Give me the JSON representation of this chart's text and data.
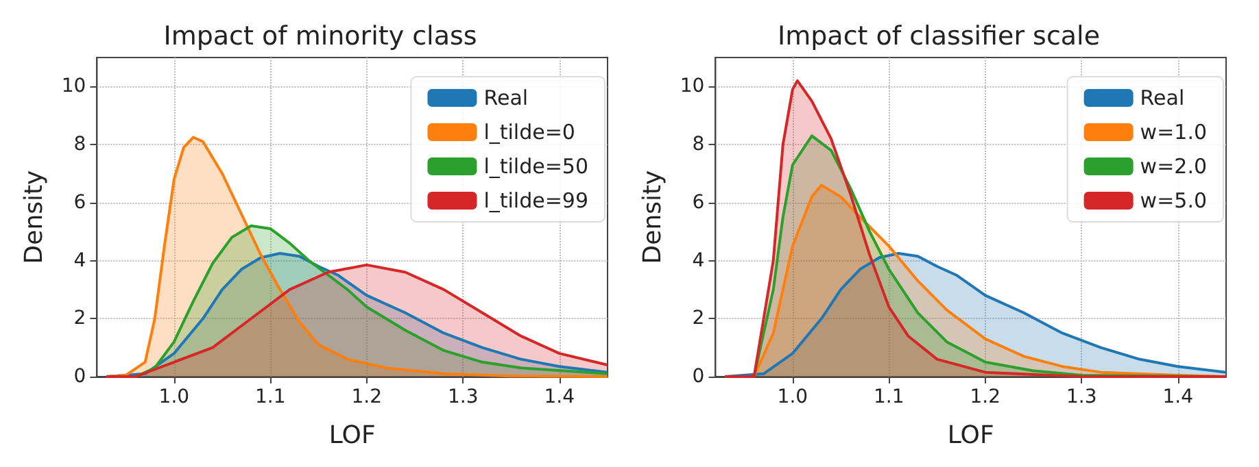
{
  "chart_data": [
    {
      "type": "area",
      "title": "Impact of minority class",
      "xlabel": "LOF",
      "ylabel": "Density",
      "xlim": [
        0.92,
        1.45
      ],
      "ylim": [
        0,
        11
      ],
      "xticks": [
        {
          "value": 1,
          "label": "1.0"
        },
        {
          "value": 1.1,
          "label": "1.1"
        },
        {
          "value": 1.2,
          "label": "1.2"
        },
        {
          "value": 1.3,
          "label": "1.3"
        },
        {
          "value": 1.4,
          "label": "1.4"
        }
      ],
      "yticks": [
        0,
        2,
        4,
        6,
        8,
        10
      ],
      "grid": true,
      "legend": "top right",
      "marker": "none",
      "series": [
        {
          "name": "Real",
          "color": "#1f77b4",
          "x": [
            0.93,
            0.97,
            1.0,
            1.03,
            1.05,
            1.07,
            1.09,
            1.11,
            1.13,
            1.15,
            1.17,
            1.2,
            1.24,
            1.28,
            1.32,
            1.36,
            1.4,
            1.45
          ],
          "values": [
            0,
            0.1,
            0.8,
            2.0,
            3.0,
            3.7,
            4.1,
            4.25,
            4.15,
            3.8,
            3.5,
            2.8,
            2.2,
            1.5,
            1.0,
            0.6,
            0.35,
            0.15
          ]
        },
        {
          "name": "l_tilde=0",
          "color": "#ff7f0e",
          "x": [
            0.93,
            0.95,
            0.97,
            0.98,
            0.99,
            1.0,
            1.01,
            1.02,
            1.03,
            1.05,
            1.07,
            1.09,
            1.11,
            1.13,
            1.15,
            1.18,
            1.22,
            1.28,
            1.35,
            1.45
          ],
          "values": [
            0,
            0.05,
            0.5,
            2,
            4.5,
            6.8,
            7.9,
            8.25,
            8.1,
            7.0,
            5.6,
            4.2,
            3.0,
            1.9,
            1.1,
            0.6,
            0.3,
            0.1,
            0.02,
            0
          ]
        },
        {
          "name": "l_tilde=50",
          "color": "#2ca02c",
          "x": [
            0.93,
            0.96,
            0.98,
            1.0,
            1.02,
            1.04,
            1.06,
            1.08,
            1.1,
            1.12,
            1.14,
            1.16,
            1.18,
            1.2,
            1.24,
            1.28,
            1.32,
            1.36,
            1.45
          ],
          "values": [
            0,
            0,
            0.3,
            1.2,
            2.6,
            3.9,
            4.8,
            5.2,
            5.1,
            4.6,
            4.0,
            3.5,
            3.0,
            2.4,
            1.6,
            0.9,
            0.5,
            0.3,
            0.1
          ]
        },
        {
          "name": "l_tilde=99",
          "color": "#d62728",
          "x": [
            0.93,
            0.96,
            1.0,
            1.04,
            1.08,
            1.12,
            1.16,
            1.2,
            1.24,
            1.28,
            1.32,
            1.36,
            1.4,
            1.45
          ],
          "values": [
            0,
            0,
            0.5,
            1.0,
            2.0,
            3.0,
            3.6,
            3.85,
            3.6,
            3.0,
            2.2,
            1.4,
            0.8,
            0.4
          ]
        }
      ]
    },
    {
      "type": "area",
      "title": "Impact of classifier scale",
      "xlabel": "LOF",
      "ylabel": "Density",
      "xlim": [
        0.92,
        1.45
      ],
      "ylim": [
        0,
        11
      ],
      "xticks": [
        {
          "value": 1,
          "label": "1.0"
        },
        {
          "value": 1.1,
          "label": "1.1"
        },
        {
          "value": 1.2,
          "label": "1.2"
        },
        {
          "value": 1.3,
          "label": "1.3"
        },
        {
          "value": 1.4,
          "label": "1.4"
        }
      ],
      "yticks": [
        0,
        2,
        4,
        6,
        8,
        10
      ],
      "grid": true,
      "legend": "top right",
      "marker": "none",
      "series": [
        {
          "name": "Real",
          "color": "#1f77b4",
          "x": [
            0.93,
            0.97,
            1.0,
            1.03,
            1.05,
            1.07,
            1.09,
            1.11,
            1.13,
            1.15,
            1.17,
            1.2,
            1.24,
            1.28,
            1.32,
            1.36,
            1.4,
            1.45
          ],
          "values": [
            0,
            0.1,
            0.8,
            2.0,
            3.0,
            3.7,
            4.1,
            4.25,
            4.15,
            3.8,
            3.5,
            2.8,
            2.2,
            1.5,
            1.0,
            0.6,
            0.35,
            0.15
          ]
        },
        {
          "name": "w=1.0",
          "color": "#ff7f0e",
          "x": [
            0.93,
            0.96,
            0.98,
            1.0,
            1.02,
            1.03,
            1.05,
            1.07,
            1.1,
            1.13,
            1.16,
            1.2,
            1.24,
            1.28,
            1.32,
            1.4,
            1.45
          ],
          "values": [
            0,
            0,
            1.5,
            4.5,
            6.2,
            6.6,
            6.2,
            5.5,
            4.5,
            3.3,
            2.3,
            1.3,
            0.7,
            0.35,
            0.15,
            0.05,
            0
          ]
        },
        {
          "name": "w=2.0",
          "color": "#2ca02c",
          "x": [
            0.93,
            0.96,
            0.98,
            0.99,
            1.0,
            1.02,
            1.04,
            1.06,
            1.08,
            1.1,
            1.13,
            1.16,
            1.2,
            1.25,
            1.3,
            1.45
          ],
          "values": [
            0,
            0,
            3,
            5.5,
            7.3,
            8.3,
            7.8,
            6.5,
            5.0,
            3.7,
            2.2,
            1.2,
            0.5,
            0.2,
            0.05,
            0
          ]
        },
        {
          "name": "w=5.0",
          "color": "#d62728",
          "x": [
            0.93,
            0.96,
            0.98,
            0.99,
            1.0,
            1.005,
            1.02,
            1.04,
            1.06,
            1.08,
            1.1,
            1.12,
            1.15,
            1.2,
            1.3,
            1.45
          ],
          "values": [
            0,
            0,
            4,
            8,
            9.9,
            10.2,
            9.5,
            8.2,
            6.3,
            4.2,
            2.4,
            1.4,
            0.6,
            0.15,
            0,
            0
          ]
        }
      ]
    }
  ]
}
